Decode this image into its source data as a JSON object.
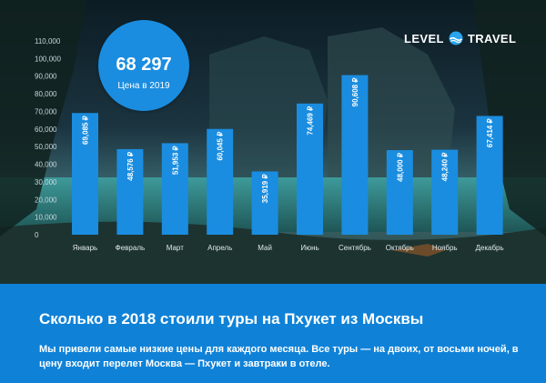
{
  "brand": {
    "logo_left": "LEVEL",
    "logo_right": "TRAVEL",
    "logo_icon": "wave-circle-icon"
  },
  "bubble": {
    "value": "68 297",
    "label": "Цена в 2019"
  },
  "footer": {
    "title": "Сколько в 2018 стоили туры на Пхукет из Москвы",
    "text": "Мы привели самые низкие цены для каждого месяца. Все туры — на двоих, от восьми ночей, в цену входит перелет Москва — Пхукет и завтраки в отеле."
  },
  "colors": {
    "bar": "#1a8de0",
    "footer": "#0f82d8",
    "bubble": "#1a8de0"
  },
  "chart_data": {
    "type": "bar",
    "categories": [
      "Январь",
      "Февраль",
      "Март",
      "Апрель",
      "Май",
      "Июнь",
      "Сентябрь",
      "Октябрь",
      "Ноябрь",
      "Декабрь"
    ],
    "values": [
      69085,
      48576,
      51953,
      60045,
      35919,
      74469,
      90608,
      48000,
      48240,
      67414
    ],
    "value_labels": [
      "69,085 ₽",
      "48,576 ₽",
      "51,953 ₽",
      "60,045 ₽",
      "35,919 ₽",
      "74,469 ₽",
      "90,608 ₽",
      "48,000 ₽",
      "48,240 ₽",
      "67,414 ₽"
    ],
    "yticks": [
      0,
      10000,
      20000,
      30000,
      40000,
      50000,
      60000,
      70000,
      80000,
      90000,
      100000,
      110000
    ],
    "ytick_labels": [
      "0",
      "10,000",
      "20,000",
      "30,000",
      "40,000",
      "50,000",
      "60,000",
      "70,000",
      "80,000",
      "90,000",
      "100,000",
      "110,000"
    ],
    "ylim": [
      0,
      110000
    ],
    "grid": false,
    "legend": "none"
  }
}
